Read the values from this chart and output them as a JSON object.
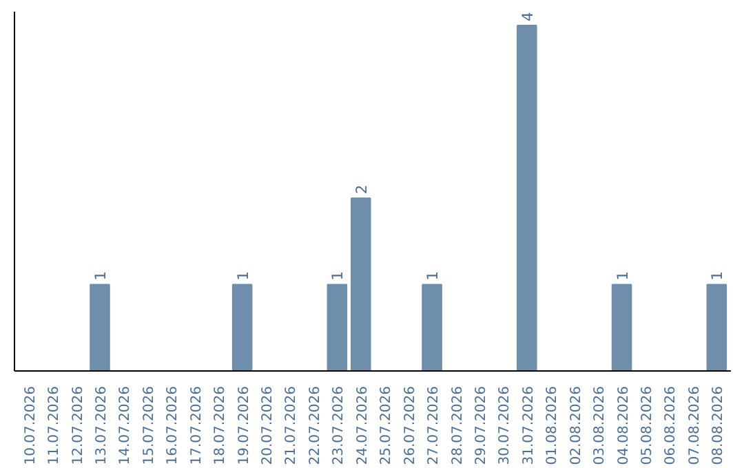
{
  "chart_data": {
    "type": "bar",
    "categories": [
      "10.07.2026",
      "11.07.2026",
      "12.07.2026",
      "13.07.2026",
      "14.07.2026",
      "15.07.2026",
      "16.07.2026",
      "17.07.2026",
      "18.07.2026",
      "19.07.2026",
      "20.07.2026",
      "21.07.2026",
      "22.07.2026",
      "23.07.2026",
      "24.07.2026",
      "25.07.2026",
      "26.07.2026",
      "27.07.2026",
      "28.07.2026",
      "29.07.2026",
      "30.07.2026",
      "31.07.2026",
      "01.08.2026",
      "02.08.2026",
      "03.08.2026",
      "04.08.2026",
      "05.08.2026",
      "06.08.2026",
      "07.08.2026",
      "08.08.2026"
    ],
    "values": [
      0,
      0,
      0,
      1,
      0,
      0,
      0,
      0,
      0,
      1,
      0,
      0,
      0,
      1,
      2,
      0,
      0,
      1,
      0,
      0,
      0,
      4,
      0,
      0,
      0,
      1,
      0,
      0,
      0,
      1
    ],
    "value_labels": [
      null,
      null,
      null,
      "1",
      null,
      null,
      null,
      null,
      null,
      "1",
      null,
      null,
      null,
      "1",
      "2",
      null,
      null,
      "1",
      null,
      null,
      null,
      "4",
      null,
      null,
      null,
      "1",
      null,
      null,
      null,
      "1"
    ],
    "color": "#6e8eab",
    "grid": false
  }
}
